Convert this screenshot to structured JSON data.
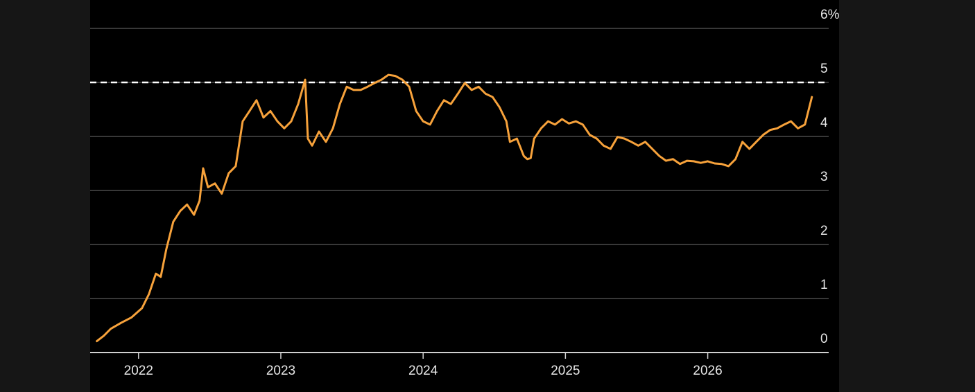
{
  "chart_data": {
    "type": "line",
    "x": [
      2021.707,
      2021.756,
      2021.805,
      2021.878,
      2021.951,
      2022.024,
      2022.073,
      2022.122,
      2022.156,
      2022.195,
      2022.244,
      2022.293,
      2022.341,
      2022.39,
      2022.429,
      2022.454,
      2022.488,
      2022.537,
      2022.585,
      2022.634,
      2022.683,
      2022.732,
      2022.78,
      2022.829,
      2022.878,
      2022.927,
      2022.976,
      2023.024,
      2023.073,
      2023.122,
      2023.171,
      2023.19,
      2023.22,
      2023.268,
      2023.317,
      2023.366,
      2023.415,
      2023.463,
      2023.512,
      2023.561,
      2023.61,
      2023.659,
      2023.707,
      2023.756,
      2023.805,
      2023.854,
      2023.902,
      2023.951,
      2024.0,
      2024.049,
      2024.098,
      2024.146,
      2024.195,
      2024.244,
      2024.293,
      2024.341,
      2024.39,
      2024.439,
      2024.488,
      2024.537,
      2024.585,
      2024.61,
      2024.659,
      2024.707,
      2024.732,
      2024.756,
      2024.78,
      2024.829,
      2024.878,
      2024.927,
      2024.976,
      2025.024,
      2025.073,
      2025.122,
      2025.171,
      2025.22,
      2025.268,
      2025.317,
      2025.366,
      2025.415,
      2025.463,
      2025.512,
      2025.561,
      2025.61,
      2025.659,
      2025.707,
      2025.756,
      2025.805,
      2025.854,
      2025.902,
      2025.951,
      2026.0,
      2026.049,
      2026.098,
      2026.146,
      2026.195,
      2026.244,
      2026.293,
      2026.341,
      2026.39,
      2026.439,
      2026.488,
      2026.537,
      2026.585,
      2026.634,
      2026.683,
      2026.732
    ],
    "series": [
      {
        "color": "#f7a23b",
        "values": [
          0.21,
          0.31,
          0.44,
          0.55,
          0.65,
          0.82,
          1.08,
          1.46,
          1.4,
          1.91,
          2.42,
          2.62,
          2.74,
          2.55,
          2.81,
          3.41,
          3.06,
          3.13,
          2.94,
          3.32,
          3.45,
          4.28,
          4.47,
          4.67,
          4.35,
          4.47,
          4.28,
          4.15,
          4.28,
          4.6,
          5.05,
          3.96,
          3.83,
          4.09,
          3.9,
          4.15,
          4.6,
          4.92,
          4.86,
          4.86,
          4.92,
          4.99,
          5.05,
          5.14,
          5.12,
          5.05,
          4.92,
          4.47,
          4.28,
          4.22,
          4.47,
          4.67,
          4.6,
          4.79,
          4.99,
          4.86,
          4.92,
          4.79,
          4.73,
          4.54,
          4.28,
          3.9,
          3.96,
          3.64,
          3.58,
          3.6,
          3.96,
          4.15,
          4.28,
          4.22,
          4.32,
          4.24,
          4.28,
          4.22,
          4.03,
          3.96,
          3.83,
          3.77,
          3.99,
          3.96,
          3.9,
          3.83,
          3.9,
          3.77,
          3.64,
          3.55,
          3.58,
          3.49,
          3.55,
          3.54,
          3.51,
          3.54,
          3.5,
          3.49,
          3.45,
          3.58,
          3.9,
          3.77,
          3.9,
          4.03,
          4.12,
          4.15,
          4.22,
          4.28,
          4.15,
          4.22,
          4.73
        ]
      }
    ],
    "xlim": [
      2021.66,
      2026.85
    ],
    "xticks": [
      2022,
      2023,
      2024,
      2025,
      2026
    ],
    "ylim": [
      0,
      6
    ],
    "yticks": [
      0,
      1,
      2,
      3,
      4,
      5,
      {
        "value": 6,
        "label": "6%"
      }
    ],
    "reference_line": 5,
    "grid": true
  }
}
